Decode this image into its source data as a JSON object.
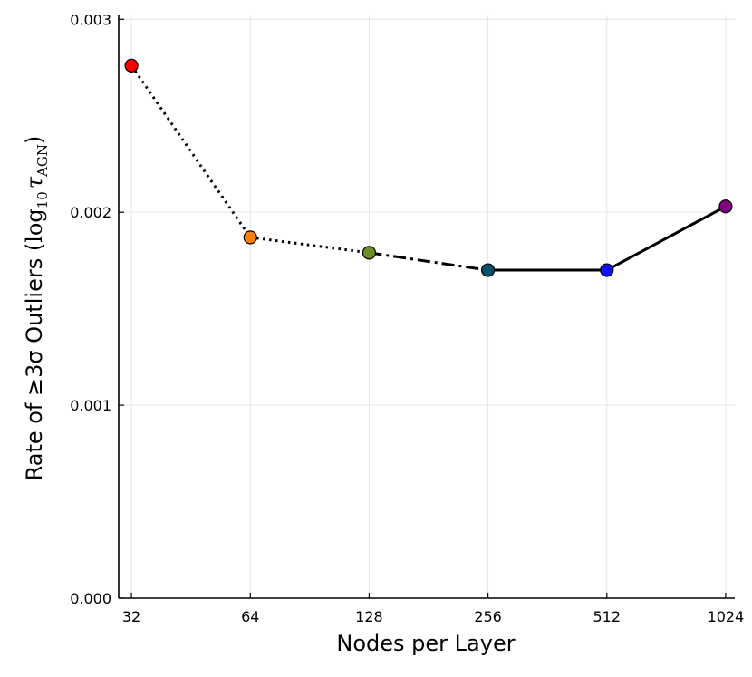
{
  "chart_data": {
    "type": "line",
    "title": "",
    "xlabel": "Nodes per Layer",
    "ylabel": {
      "prefix": "Rate of ≥3σ Outliers (",
      "log": "log",
      "log_sub": "10",
      "tau": "τ",
      "tau_sub": "AGN",
      "suffix": ")"
    },
    "x_scale": "log2",
    "x_ticks": [
      "32",
      "64",
      "128",
      "256",
      "512",
      "1024"
    ],
    "x_tick_values": [
      32,
      64,
      128,
      256,
      512,
      1024
    ],
    "y_ticks": [
      "0.000",
      "0.001",
      "0.002",
      "0.003"
    ],
    "y_tick_values": [
      0.0,
      0.001,
      0.002,
      0.003
    ],
    "ylim": [
      0.0,
      0.00302
    ],
    "xlim": [
      29.7,
      1080
    ],
    "grid": true,
    "points": [
      {
        "x": 32,
        "y": 0.00276,
        "color": "#ff0000"
      },
      {
        "x": 64,
        "y": 0.00187,
        "color": "#ff8000"
      },
      {
        "x": 128,
        "y": 0.00179,
        "color": "#6b8e23"
      },
      {
        "x": 256,
        "y": 0.0017,
        "color": "#00506b"
      },
      {
        "x": 512,
        "y": 0.0017,
        "color": "#1010ff"
      },
      {
        "x": 1024,
        "y": 0.00203,
        "color": "#800080"
      }
    ],
    "segments": [
      {
        "from": 0,
        "to": 1,
        "style": "dotted"
      },
      {
        "from": 1,
        "to": 2,
        "style": "dotted"
      },
      {
        "from": 2,
        "to": 3,
        "style": "dash-dot"
      },
      {
        "from": 3,
        "to": 4,
        "style": "solid"
      },
      {
        "from": 4,
        "to": 5,
        "style": "solid"
      }
    ]
  }
}
